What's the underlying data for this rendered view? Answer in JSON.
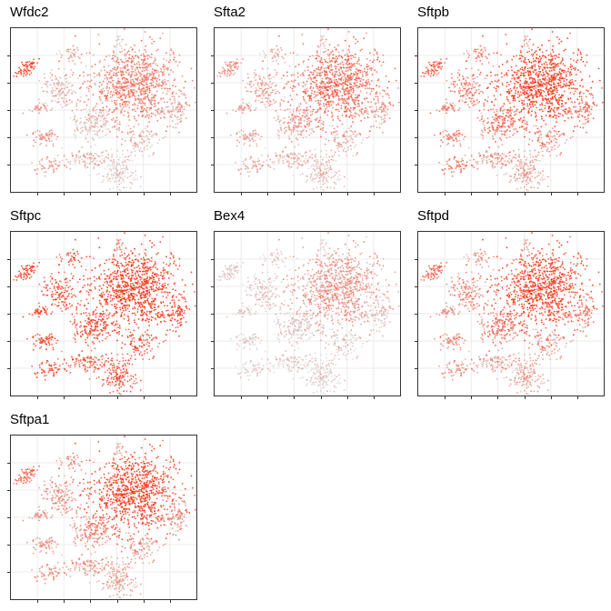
{
  "figure": {
    "panels": [
      {
        "title": "Wfdc2"
      },
      {
        "title": "Sfta2"
      },
      {
        "title": "Sftpb"
      },
      {
        "title": "Sftpc"
      },
      {
        "title": "Bex4"
      },
      {
        "title": "Sftpd"
      },
      {
        "title": "Sftpa1"
      }
    ]
  },
  "chart_data": {
    "type": "scatter",
    "description_note": "",
    "grid": true,
    "color_low": "#d9d9d9",
    "color_high": "#ff2200",
    "clusters": [
      {
        "id": "c1",
        "cx": 0.08,
        "cy": 0.25,
        "sx": 0.035,
        "sy": 0.04,
        "n": 60,
        "shape": "elongated"
      },
      {
        "id": "c2",
        "cx": 0.33,
        "cy": 0.16,
        "sx": 0.045,
        "sy": 0.03,
        "n": 40
      },
      {
        "id": "c3",
        "cx": 0.58,
        "cy": 0.08,
        "sx": 0.01,
        "sy": 0.03,
        "n": 15
      },
      {
        "id": "c4",
        "cx": 0.67,
        "cy": 0.35,
        "sx": 0.12,
        "sy": 0.12,
        "n": 900
      },
      {
        "id": "c5",
        "cx": 0.26,
        "cy": 0.38,
        "sx": 0.05,
        "sy": 0.06,
        "n": 140
      },
      {
        "id": "c6",
        "cx": 0.16,
        "cy": 0.49,
        "sx": 0.04,
        "sy": 0.015,
        "n": 40
      },
      {
        "id": "c7",
        "cx": 0.91,
        "cy": 0.49,
        "sx": 0.025,
        "sy": 0.05,
        "n": 60
      },
      {
        "id": "c8",
        "cx": 0.45,
        "cy": 0.58,
        "sx": 0.05,
        "sy": 0.05,
        "n": 160
      },
      {
        "id": "c9",
        "cx": 0.18,
        "cy": 0.67,
        "sx": 0.04,
        "sy": 0.025,
        "n": 60
      },
      {
        "id": "c10",
        "cx": 0.7,
        "cy": 0.69,
        "sx": 0.05,
        "sy": 0.04,
        "n": 90
      },
      {
        "id": "c11",
        "cx": 0.42,
        "cy": 0.79,
        "sx": 0.07,
        "sy": 0.025,
        "n": 100
      },
      {
        "id": "c12",
        "cx": 0.22,
        "cy": 0.84,
        "sx": 0.05,
        "sy": 0.025,
        "n": 60
      },
      {
        "id": "c13",
        "cx": 0.58,
        "cy": 0.88,
        "sx": 0.05,
        "sy": 0.06,
        "n": 160
      },
      {
        "id": "c14",
        "cx": 0.82,
        "cy": 0.52,
        "sx": 0.02,
        "sy": 0.02,
        "n": 20
      },
      {
        "id": "c15",
        "cx": 0.35,
        "cy": 0.57,
        "sx": 0.01,
        "sy": 0.04,
        "n": 15
      }
    ],
    "expression": [
      {
        "gene": "Wfdc2",
        "levels": {
          "c1": 0.95,
          "c2": 0.35,
          "c3": 0.2,
          "c4": 0.55,
          "c5": 0.25,
          "c6": 0.35,
          "c7": 0.3,
          "c8": 0.15,
          "c9": 0.45,
          "c10": 0.25,
          "c11": 0.25,
          "c12": 0.35,
          "c13": 0.1,
          "c14": 0.2,
          "c15": 0.2
        }
      },
      {
        "gene": "Sfta2",
        "levels": {
          "c1": 0.45,
          "c2": 0.3,
          "c3": 0.3,
          "c4": 0.65,
          "c5": 0.35,
          "c6": 0.35,
          "c7": 0.3,
          "c8": 0.35,
          "c9": 0.35,
          "c10": 0.3,
          "c11": 0.25,
          "c12": 0.3,
          "c13": 0.2,
          "c14": 0.2,
          "c15": 0.2
        }
      },
      {
        "gene": "Sftpb",
        "levels": {
          "c1": 0.75,
          "c2": 0.6,
          "c3": 0.4,
          "c4": 0.95,
          "c5": 0.55,
          "c6": 0.55,
          "c7": 0.55,
          "c8": 0.6,
          "c9": 0.55,
          "c10": 0.5,
          "c11": 0.4,
          "c12": 0.6,
          "c13": 0.35,
          "c14": 0.4,
          "c15": 0.4
        }
      },
      {
        "gene": "Sftpc",
        "levels": {
          "c1": 0.9,
          "c2": 0.85,
          "c3": 0.7,
          "c4": 0.98,
          "c5": 0.8,
          "c6": 0.85,
          "c7": 0.85,
          "c8": 0.85,
          "c9": 0.9,
          "c10": 0.8,
          "c11": 0.75,
          "c12": 0.85,
          "c13": 0.8,
          "c14": 0.75,
          "c15": 0.7
        }
      },
      {
        "gene": "Bex4",
        "levels": {
          "c1": 0.1,
          "c2": 0.1,
          "c3": 0.1,
          "c4": 0.4,
          "c5": 0.12,
          "c6": 0.08,
          "c7": 0.1,
          "c8": 0.1,
          "c9": 0.08,
          "c10": 0.1,
          "c11": 0.08,
          "c12": 0.08,
          "c13": 0.08,
          "c14": 0.1,
          "c15": 0.1
        }
      },
      {
        "gene": "Sftpd",
        "levels": {
          "c1": 0.7,
          "c2": 0.45,
          "c3": 0.45,
          "c4": 0.9,
          "c5": 0.5,
          "c6": 0.45,
          "c7": 0.5,
          "c8": 0.6,
          "c9": 0.5,
          "c10": 0.45,
          "c11": 0.35,
          "c12": 0.45,
          "c13": 0.35,
          "c14": 0.4,
          "c15": 0.4
        }
      },
      {
        "gene": "Sftpa1",
        "levels": {
          "c1": 0.7,
          "c2": 0.5,
          "c3": 0.4,
          "c4": 0.93,
          "c5": 0.45,
          "c6": 0.4,
          "c7": 0.4,
          "c8": 0.5,
          "c9": 0.45,
          "c10": 0.45,
          "c11": 0.4,
          "c12": 0.45,
          "c13": 0.35,
          "c14": 0.35,
          "c15": 0.35
        }
      }
    ]
  }
}
